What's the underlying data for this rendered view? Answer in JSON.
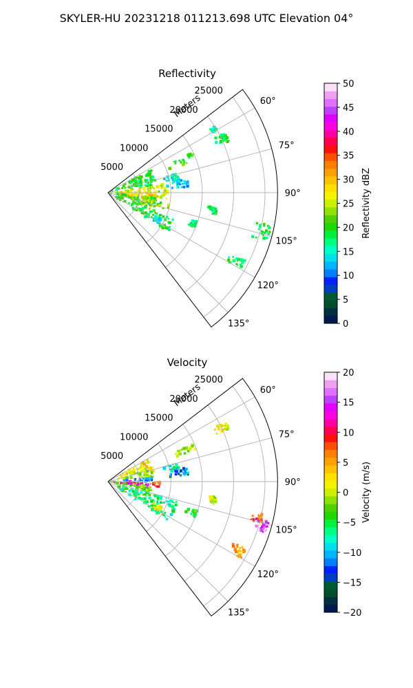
{
  "figure": {
    "title": "SKYLER-HU  20231218  011213.698 UTC Elevation 04°"
  },
  "chart_data": [
    {
      "type": "heatmap",
      "subtype": "polar-sector-ppi",
      "title": "Reflectivity",
      "range_axis_label": "Meters",
      "range_ticks": [
        5000,
        10000,
        15000,
        20000,
        25000
      ],
      "range_tick_labels": [
        "5000",
        "10000",
        "15000",
        "20000",
        "25000"
      ],
      "range_max": 27000,
      "azimuth_range_deg": [
        52.5,
        142.5
      ],
      "azimuth_ticks": [
        60,
        75,
        90,
        105,
        120,
        135
      ],
      "azimuth_tick_labels": [
        "60°",
        "75°",
        "90°",
        "105°",
        "120°",
        "135°"
      ],
      "grid": true,
      "colorbar": {
        "label": "Reflectivity dBZ",
        "min": 0,
        "max": 50,
        "ticks": [
          0,
          5,
          10,
          15,
          20,
          25,
          30,
          35,
          40,
          45,
          50
        ],
        "tick_labels": [
          "0",
          "5",
          "10",
          "15",
          "20",
          "25",
          "30",
          "35",
          "40",
          "45",
          "50"
        ],
        "colors": [
          "#001a4d",
          "#003040",
          "#004d2e",
          "#005a32",
          "#0040c0",
          "#0022ff",
          "#0080ff",
          "#00b4ff",
          "#00e0e8",
          "#00ffc8",
          "#00ff80",
          "#00f040",
          "#20d800",
          "#50d000",
          "#90e000",
          "#c8f000",
          "#f4f400",
          "#ffe000",
          "#ffc000",
          "#ffa000",
          "#ff8000",
          "#ff5000",
          "#ff1010",
          "#ff0050",
          "#ff00a0",
          "#ff00e0",
          "#e000ff",
          "#c040ff",
          "#e070ff",
          "#f0a0f0",
          "#fce0f8"
        ]
      },
      "echoes": [
        {
          "az": [
            61,
            81
          ],
          "r": [
            0,
            7800
          ],
          "value": 19
        },
        {
          "az": [
            81,
            96
          ],
          "r": [
            500,
            9500
          ],
          "value": 25
        },
        {
          "az": [
            88,
            100
          ],
          "r": [
            1000,
            8000
          ],
          "value": 29
        },
        {
          "az": [
            96,
            112
          ],
          "r": [
            0,
            8000
          ],
          "value": 21
        },
        {
          "az": [
            100,
            106
          ],
          "r": [
            2000,
            10000
          ],
          "value": 23
        },
        {
          "az": [
            112,
            123
          ],
          "r": [
            0,
            11500
          ],
          "value": 19
        },
        {
          "az": [
            64,
            70
          ],
          "r": [
            10000,
            15000
          ],
          "value": 20
        },
        {
          "az": [
            74,
            81
          ],
          "r": [
            9000,
            11500
          ],
          "value": 15
        },
        {
          "az": [
            80,
            86
          ],
          "r": [
            9000,
            13000
          ],
          "value": 13
        },
        {
          "az": [
            63,
            67
          ],
          "r": [
            18500,
            21000
          ],
          "value": 18
        },
        {
          "az": [
            101,
            107
          ],
          "r": [
            23000,
            26500
          ],
          "value": 19
        },
        {
          "az": [
            116,
            120
          ],
          "r": [
            21500,
            24500
          ],
          "value": 18
        },
        {
          "az": [
            98,
            102
          ],
          "r": [
            16000,
            17500
          ],
          "value": 18
        },
        {
          "az": [
            58,
            60
          ],
          "r": [
            19000,
            20000
          ],
          "value": 17
        },
        {
          "az": [
            116,
            121
          ],
          "r": [
            8000,
            9500
          ],
          "value": 13
        },
        {
          "az": [
            108,
            112
          ],
          "r": [
            13000,
            15000
          ],
          "value": 16
        }
      ]
    },
    {
      "type": "heatmap",
      "subtype": "polar-sector-ppi",
      "title": "Velocity",
      "range_axis_label": "Meters",
      "range_ticks": [
        5000,
        10000,
        15000,
        20000,
        25000
      ],
      "range_tick_labels": [
        "5000",
        "10000",
        "15000",
        "20000",
        "25000"
      ],
      "range_max": 27000,
      "azimuth_range_deg": [
        52.5,
        142.5
      ],
      "azimuth_ticks": [
        60,
        75,
        90,
        105,
        120,
        135
      ],
      "azimuth_tick_labels": [
        "60°",
        "75°",
        "90°",
        "105°",
        "120°",
        "135°"
      ],
      "grid": true,
      "colorbar": {
        "label": "Velocity (m/s)",
        "min": -20,
        "max": 20,
        "ticks": [
          -20,
          -15,
          -10,
          -5,
          0,
          5,
          10,
          15,
          20
        ],
        "tick_labels": [
          "−20",
          "−15",
          "−10",
          "−5",
          "0",
          "5",
          "10",
          "15",
          "20"
        ],
        "colors": [
          "#001a4d",
          "#003040",
          "#004d2e",
          "#005a32",
          "#0040c0",
          "#0022ff",
          "#0080ff",
          "#00b4ff",
          "#00e0e8",
          "#00ffc8",
          "#00ff80",
          "#00f040",
          "#20d800",
          "#50d000",
          "#90e000",
          "#c8f000",
          "#f4f400",
          "#ffe000",
          "#ffc000",
          "#ffa000",
          "#ff8000",
          "#ff5000",
          "#ff1010",
          "#ff0050",
          "#ff00a0",
          "#ff00e0",
          "#e000ff",
          "#c040ff",
          "#e070ff",
          "#f0a0f0",
          "#fce0f8"
        ]
      },
      "echoes": [
        {
          "az": [
            61,
            74
          ],
          "r": [
            0,
            7500
          ],
          "value": 2
        },
        {
          "az": [
            74,
            84
          ],
          "r": [
            0,
            7500
          ],
          "value": -1
        },
        {
          "az": [
            84,
            90
          ],
          "r": [
            0,
            7000
          ],
          "value": -11
        },
        {
          "az": [
            90,
            96
          ],
          "r": [
            0,
            8500
          ],
          "value": 9
        },
        {
          "az": [
            94,
            98
          ],
          "r": [
            0,
            6500
          ],
          "value": 16
        },
        {
          "az": [
            97,
            105
          ],
          "r": [
            0,
            7000
          ],
          "value": -2
        },
        {
          "az": [
            105,
            123
          ],
          "r": [
            0,
            11500
          ],
          "value": -6
        },
        {
          "az": [
            66,
            70
          ],
          "r": [
            10000,
            15000
          ],
          "value": 0
        },
        {
          "az": [
            75,
            81
          ],
          "r": [
            9000,
            11500
          ],
          "value": -8
        },
        {
          "az": [
            80,
            86
          ],
          "r": [
            9000,
            13000
          ],
          "value": -12
        },
        {
          "az": [
            63,
            67
          ],
          "r": [
            18500,
            21000
          ],
          "value": 1
        },
        {
          "az": [
            102,
            105
          ],
          "r": [
            23000,
            25500
          ],
          "value": 8
        },
        {
          "az": [
            104,
            108
          ],
          "r": [
            24500,
            26500
          ],
          "value": 16
        },
        {
          "az": [
            116,
            120
          ],
          "r": [
            21500,
            24500
          ],
          "value": 6
        },
        {
          "az": [
            98,
            102
          ],
          "r": [
            16000,
            17500
          ],
          "value": 0
        },
        {
          "az": [
            115,
            120
          ],
          "r": [
            8000,
            9500
          ],
          "value": 0
        },
        {
          "az": [
            108,
            112
          ],
          "r": [
            13000,
            15000
          ],
          "value": -3
        }
      ]
    }
  ]
}
